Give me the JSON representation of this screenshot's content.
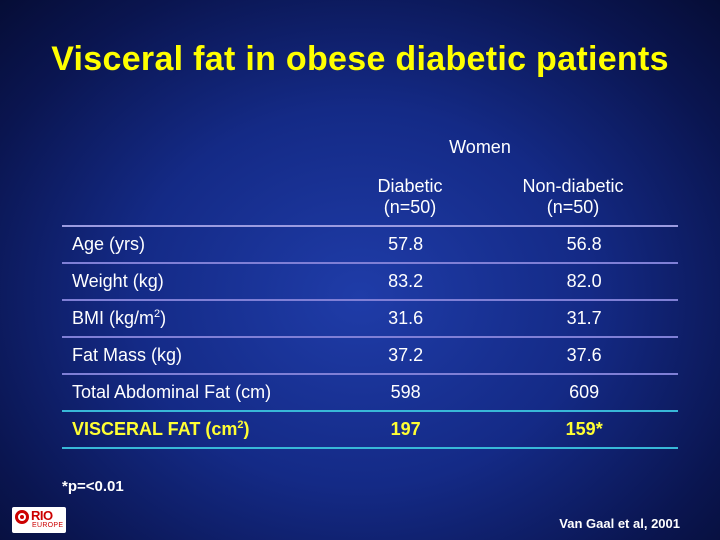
{
  "title": "Visceral fat in obese diabetic patients",
  "table": {
    "group_header": "Women",
    "columns": [
      {
        "line1": "Diabetic",
        "line2": "(n=50)"
      },
      {
        "line1": "Non-diabetic",
        "line2": "(n=50)"
      }
    ],
    "rows": [
      {
        "label": "Age (yrs)",
        "diabetic": "57.8",
        "non_diabetic": "56.8"
      },
      {
        "label": "Weight (kg)",
        "diabetic": "83.2",
        "non_diabetic": "82.0"
      },
      {
        "label_main": "BMI (kg/m",
        "label_sup": "2",
        "label_end": ")",
        "diabetic": "31.6",
        "non_diabetic": "31.7"
      },
      {
        "label": "Fat Mass (kg)",
        "diabetic": "37.2",
        "non_diabetic": "37.6"
      },
      {
        "label": "Total Abdominal Fat (cm)",
        "diabetic": "598",
        "non_diabetic": "609"
      },
      {
        "label_main": "VISCERAL FAT (cm",
        "label_sup": "2",
        "label_end": ")",
        "diabetic": "197",
        "non_diabetic": "159*"
      }
    ]
  },
  "footnote": "*p=<0.01",
  "citation": "Van Gaal et al, 2001",
  "logo": {
    "brand": "RIO",
    "sub": "EUROPE"
  },
  "colors": {
    "title": "#ffff00",
    "highlight_text": "#ffff33",
    "highlight_rule": "#38b8d8",
    "row_rule": "#7f7fd6",
    "logo_red": "#cc0000"
  }
}
